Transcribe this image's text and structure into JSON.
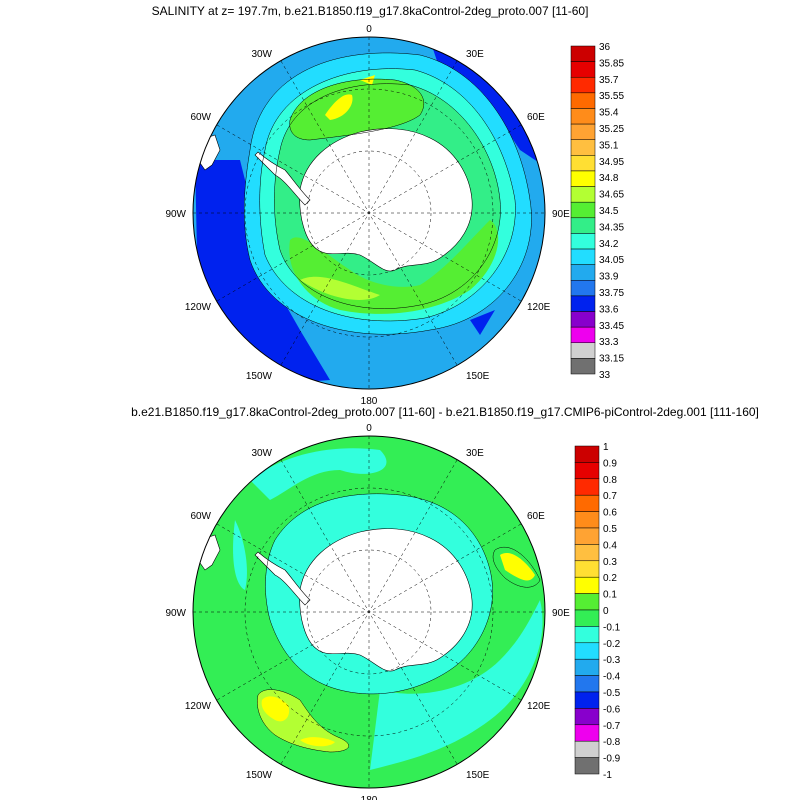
{
  "panels": [
    {
      "title": "SALINITY at z= 197.7m, b.e21.B1850.f19_g17.8kaControl-2deg_proto.007 [11-60]",
      "lon_labels": [
        "0",
        "30E",
        "60E",
        "90E",
        "120E",
        "150E",
        "180",
        "150W",
        "120W",
        "90W",
        "60W",
        "30W"
      ],
      "colorbar": {
        "labels": [
          "36",
          "35.85",
          "35.7",
          "35.55",
          "35.4",
          "35.25",
          "35.1",
          "34.95",
          "34.8",
          "34.65",
          "34.5",
          "34.35",
          "34.2",
          "34.05",
          "33.9",
          "33.75",
          "33.6",
          "33.45",
          "33.3",
          "33.15",
          "33"
        ],
        "colors": [
          "#cc0000",
          "#e60000",
          "#ff2a00",
          "#ff6a00",
          "#ff8c1a",
          "#ffa333",
          "#ffbf40",
          "#ffdf33",
          "#ffff00",
          "#b3ff33",
          "#55ee33",
          "#33ee88",
          "#33ffdd",
          "#22ddff",
          "#22aaee",
          "#2277ee",
          "#0022ee",
          "#8800cc",
          "#ee00ee",
          "#d0d0d0",
          "#707070"
        ]
      }
    },
    {
      "title": "b.e21.B1850.f19_g17.8kaControl-2deg_proto.007 [11-60] - b.e21.B1850.f19_g17.CMIP6-piControl-2deg.001 [111-160]",
      "lon_labels": [
        "0",
        "30E",
        "60E",
        "90E",
        "120E",
        "150E",
        "180",
        "150W",
        "120W",
        "90W",
        "60W",
        "30W"
      ],
      "colorbar": {
        "labels": [
          "1",
          "0.9",
          "0.8",
          "0.7",
          "0.6",
          "0.5",
          "0.4",
          "0.3",
          "0.2",
          "0.1",
          "0",
          "-0.1",
          "-0.2",
          "-0.3",
          "-0.4",
          "-0.5",
          "-0.6",
          "-0.7",
          "-0.8",
          "-0.9",
          "-1"
        ],
        "colors": [
          "#cc0000",
          "#e60000",
          "#ff2a00",
          "#ff6a00",
          "#ff8c1a",
          "#ffa333",
          "#ffbf40",
          "#ffdf33",
          "#ffff00",
          "#55ee33",
          "#33ee55",
          "#33ffdd",
          "#22ddff",
          "#22aaee",
          "#2277ee",
          "#0022ee",
          "#8800cc",
          "#ee00ee",
          "#d0d0d0",
          "#707070"
        ]
      }
    }
  ]
}
